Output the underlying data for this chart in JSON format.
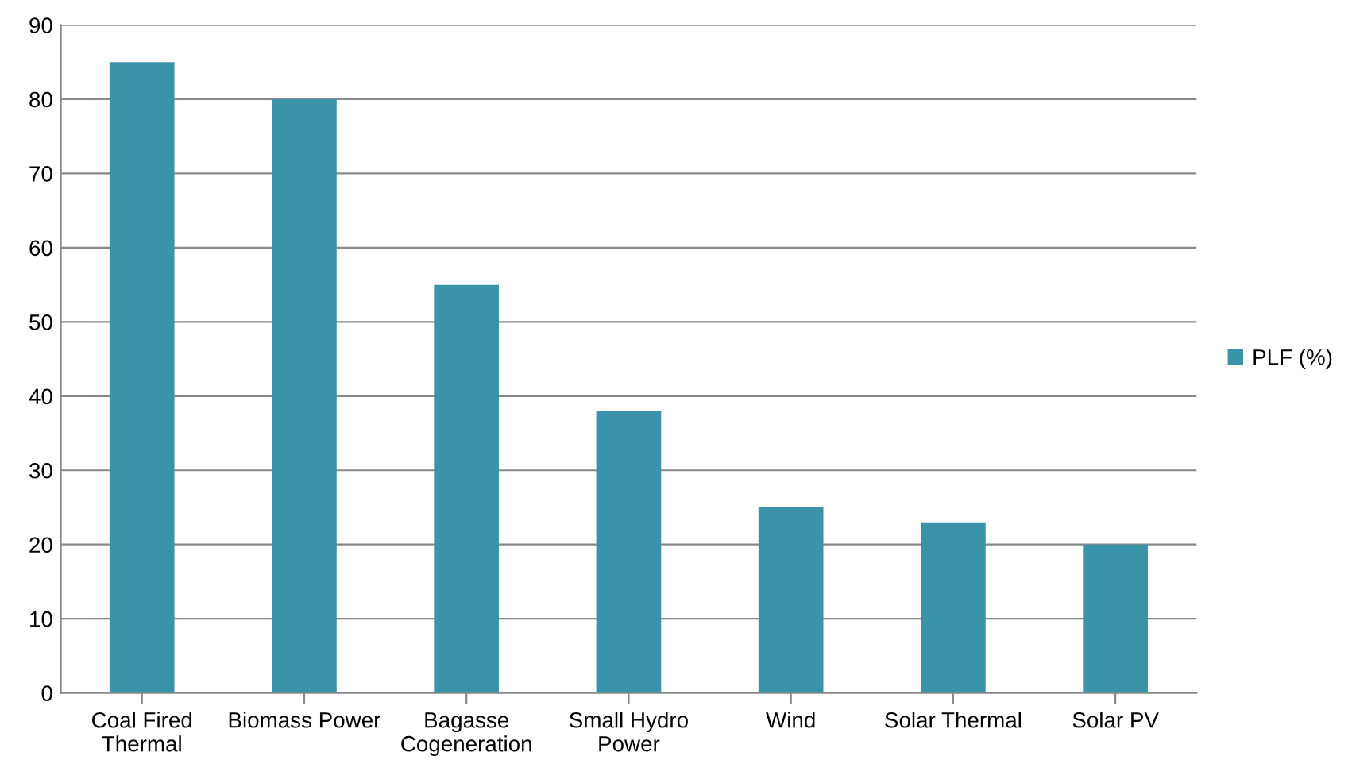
{
  "chart_data": {
    "type": "bar",
    "categories": [
      "Coal Fired Thermal",
      "Biomass Power",
      "Bagasse Cogeneration",
      "Small Hydro Power",
      "Wind",
      "Solar Thermal",
      "Solar PV"
    ],
    "series": [
      {
        "name": "PLF (%)",
        "color": "#3a93a9",
        "values": [
          85,
          80,
          55,
          38,
          25,
          23,
          20
        ]
      }
    ],
    "ylim": [
      0,
      90
    ],
    "yticks": [
      0,
      10,
      20,
      30,
      40,
      50,
      60,
      70,
      80,
      90
    ],
    "grid": "y",
    "legend": "right"
  }
}
